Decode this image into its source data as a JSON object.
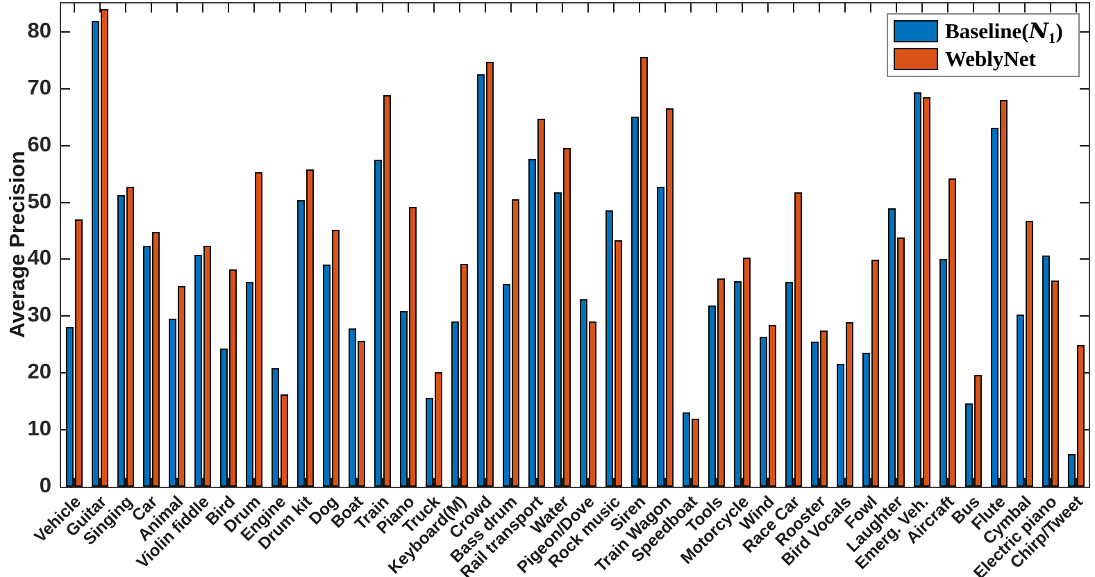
{
  "chart_data": {
    "type": "bar",
    "title": "",
    "xlabel": "",
    "ylabel": "Average Precision",
    "ylim": [
      0,
      85
    ],
    "yticks": [
      0,
      10,
      20,
      30,
      40,
      50,
      60,
      70,
      80
    ],
    "grid": false,
    "legend_position": "top-right",
    "categories": [
      "Vehicle",
      "Guitar",
      "Singing",
      "Car",
      "Animal",
      "Violin fiddle",
      "Bird",
      "Drum",
      "Engine",
      "Drum kit",
      "Dog",
      "Boat",
      "Train",
      "Piano",
      "Truck",
      "Keyboard(M)",
      "Crowd",
      "Bass drum",
      "Rail transport",
      "Water",
      "Pigeon/Dove",
      "Rock music",
      "Siren",
      "Train Wagon",
      "Speedboat",
      "Tools",
      "Motorcycle",
      "Wind",
      "Race Car",
      "Rooster",
      "Bird Vocals",
      "Fowl",
      "Laughter",
      "Emerg. Veh.",
      "Aircraft",
      "Bus",
      "Flute",
      "Cymbal",
      "Electric piano",
      "Chirp/Tweet"
    ],
    "series": [
      {
        "name": "Baseline(N1)",
        "color": "#0072BD",
        "values": [
          28.1,
          81.9,
          51.3,
          42.4,
          29.6,
          40.8,
          24.3,
          36.0,
          20.9,
          50.4,
          39.1,
          27.9,
          57.5,
          30.9,
          15.6,
          29.1,
          72.6,
          35.7,
          57.6,
          51.8,
          33.0,
          48.6,
          65.1,
          52.7,
          13.1,
          31.9,
          36.1,
          26.4,
          36.0,
          25.5,
          21.6,
          23.6,
          49.0,
          69.4,
          40.1,
          14.6,
          63.2,
          30.3,
          40.7,
          5.8
        ]
      },
      {
        "name": "WeblyNet",
        "color": "#D95319",
        "values": [
          47.0,
          84.0,
          52.8,
          44.8,
          35.3,
          42.4,
          38.2,
          55.3,
          16.2,
          55.8,
          45.2,
          25.7,
          68.9,
          49.2,
          20.1,
          39.2,
          74.7,
          50.6,
          64.7,
          59.6,
          29.1,
          43.3,
          75.6,
          66.5,
          12.0,
          36.6,
          40.3,
          28.5,
          51.8,
          27.5,
          29.0,
          39.9,
          43.9,
          68.5,
          54.2,
          19.7,
          68.0,
          46.8,
          36.3,
          24.9
        ]
      }
    ]
  },
  "legend": {
    "baseline": {
      "prefix": "Baseline(",
      "symbol": "N",
      "subscript": "1",
      "suffix": ")"
    },
    "weblynet": "WeblyNet"
  },
  "colors": {
    "baseline_blue": "#0072BD",
    "weblynet_orange": "#D95319",
    "bar_edge": "#101010",
    "axis": "#3c3c3c",
    "text": "#262626"
  }
}
